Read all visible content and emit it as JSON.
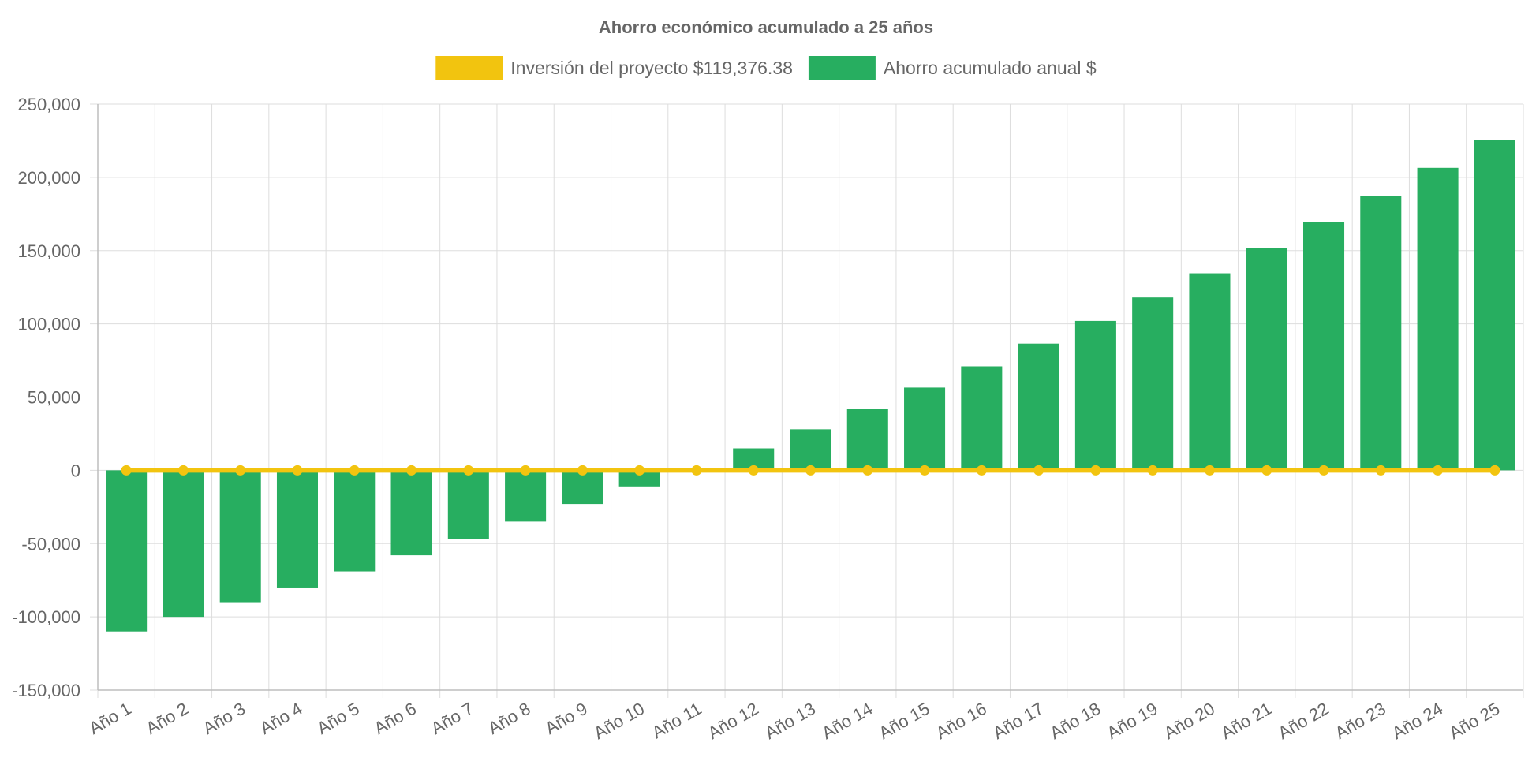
{
  "chart_data": {
    "type": "bar",
    "title": "Ahorro económico acumulado a 25 años",
    "legend_position": "top",
    "grid": true,
    "ylim": [
      -150000,
      250000
    ],
    "yticks": [
      -150000,
      -100000,
      -50000,
      0,
      50000,
      100000,
      150000,
      200000,
      250000
    ],
    "ytick_labels": [
      "-150,000",
      "-100,000",
      "-50,000",
      "0",
      "50,000",
      "100,000",
      "150,000",
      "200,000",
      "250,000"
    ],
    "categories": [
      "Año 1",
      "Año 2",
      "Año 3",
      "Año 4",
      "Año 5",
      "Año 6",
      "Año 7",
      "Año 8",
      "Año 9",
      "Año 10",
      "Año 11",
      "Año 12",
      "Año 13",
      "Año 14",
      "Año 15",
      "Año 16",
      "Año 17",
      "Año 18",
      "Año 19",
      "Año 20",
      "Año 21",
      "Año 22",
      "Año 23",
      "Año 24",
      "Año 25"
    ],
    "series": [
      {
        "name": "Inversión del proyecto $119,376.38",
        "type": "line",
        "color": "#f2c40f",
        "values": [
          0,
          0,
          0,
          0,
          0,
          0,
          0,
          0,
          0,
          0,
          0,
          0,
          0,
          0,
          0,
          0,
          0,
          0,
          0,
          0,
          0,
          0,
          0,
          0,
          0
        ]
      },
      {
        "name": "Ahorro acumulado anual $",
        "type": "bar",
        "color": "#27ae60",
        "values": [
          -110000,
          -100000,
          -90000,
          -80000,
          -69000,
          -58000,
          -47000,
          -35000,
          -23000,
          -11000,
          1000,
          15000,
          28000,
          42000,
          56500,
          71000,
          86500,
          102000,
          118000,
          134500,
          151500,
          169500,
          187500,
          206500,
          225500
        ]
      }
    ]
  }
}
